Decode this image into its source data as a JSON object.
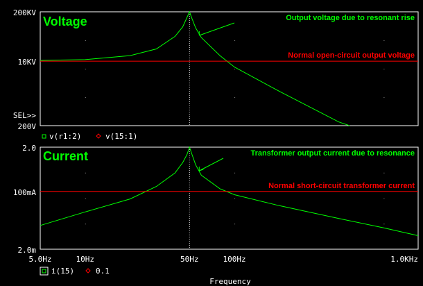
{
  "chart_data": [
    {
      "type": "line",
      "panel_title": "Voltage",
      "scale": "log-log",
      "y_ticks": [
        "200KV",
        "10KV",
        "200V"
      ],
      "y_range": [
        200,
        200000
      ],
      "x_range": [
        5,
        1700
      ],
      "sel_marker": "SEL>>",
      "series": [
        {
          "name": "v(r1:2)",
          "color": "#00ff00",
          "marker": "square",
          "points": [
            [
              5,
              10500
            ],
            [
              10,
              11000
            ],
            [
              20,
              14000
            ],
            [
              30,
              21000
            ],
            [
              40,
              45000
            ],
            [
              45,
              80000
            ],
            [
              48,
              140000
            ],
            [
              50,
              200000
            ],
            [
              52,
              130000
            ],
            [
              55,
              75000
            ],
            [
              60,
              42000
            ],
            [
              80,
              14000
            ],
            [
              100,
              7000
            ],
            [
              200,
              1600
            ],
            [
              500,
              250
            ],
            [
              590,
              200
            ]
          ]
        },
        {
          "name": "v(15:1)",
          "color": "#ff0000",
          "marker": "diamond",
          "points": [
            [
              5,
              10000
            ],
            [
              1700,
              10000
            ]
          ]
        }
      ],
      "annotations": [
        {
          "text": "Output voltage due to resonant rise",
          "color": "#00ff00"
        },
        {
          "text": "Normal open-circuit output voltage",
          "color": "#ff0000"
        }
      ]
    },
    {
      "type": "line",
      "panel_title": "Current",
      "scale": "log-log",
      "y_ticks": [
        "2.0",
        "100mA",
        "2.0m"
      ],
      "y_range": [
        0.002,
        2.0
      ],
      "x_ticks": [
        "5.0Hz",
        "10Hz",
        "50Hz",
        "100Hz",
        "1.0KHz"
      ],
      "x_range": [
        5,
        1700
      ],
      "xlabel": "Frequency",
      "series": [
        {
          "name": "i(15)",
          "color": "#00ff00",
          "marker": "square",
          "points": [
            [
              5,
              0.01
            ],
            [
              10,
              0.025
            ],
            [
              20,
              0.06
            ],
            [
              30,
              0.14
            ],
            [
              40,
              0.35
            ],
            [
              45,
              0.7
            ],
            [
              48,
              1.2
            ],
            [
              50,
              2.0
            ],
            [
              52,
              1.2
            ],
            [
              55,
              0.6
            ],
            [
              60,
              0.3
            ],
            [
              80,
              0.12
            ],
            [
              100,
              0.08
            ],
            [
              200,
              0.038
            ],
            [
              500,
              0.016
            ],
            [
              1000,
              0.0085
            ],
            [
              1700,
              0.005
            ]
          ]
        },
        {
          "name": "0.1",
          "color": "#ff0000",
          "marker": "diamond",
          "points": [
            [
              5,
              0.1
            ],
            [
              1700,
              0.1
            ]
          ]
        }
      ],
      "annotations": [
        {
          "text": "Transformer output current due to resonance",
          "color": "#00ff00"
        },
        {
          "text": "Normal short-circuit transformer current",
          "color": "#ff0000"
        }
      ]
    }
  ]
}
